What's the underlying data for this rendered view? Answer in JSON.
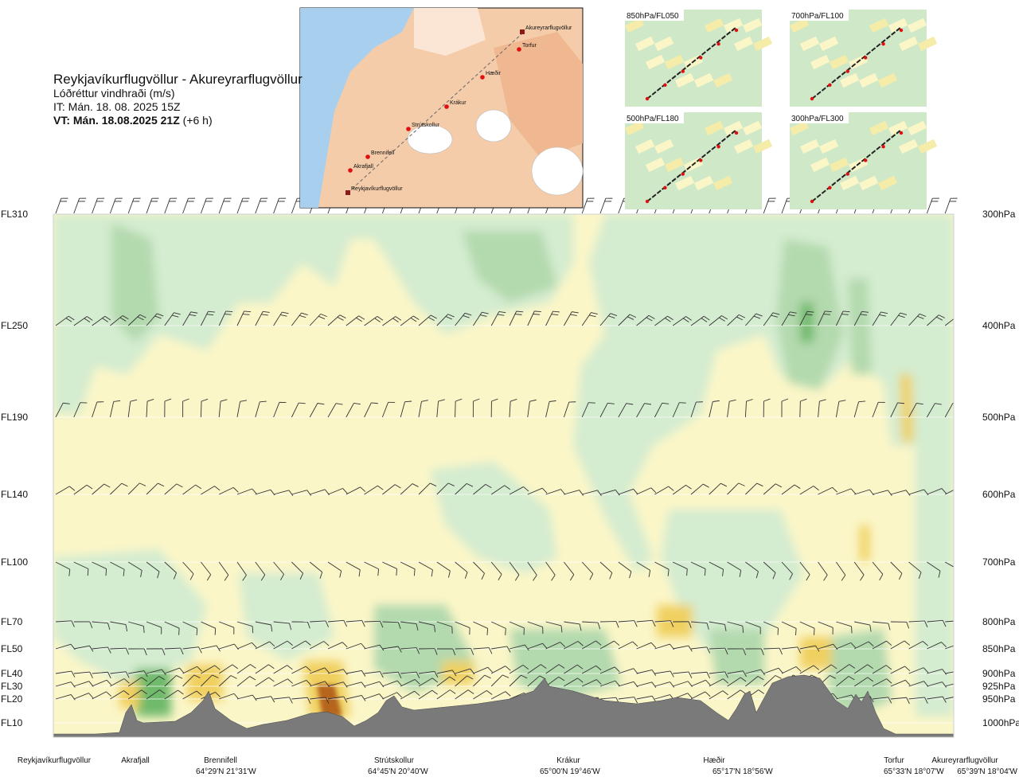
{
  "header": {
    "title": "Reykjavíkurflugvöllur - Akureyrarflugvöllur",
    "subtitle": "Lóðréttur vindhraði (m/s)",
    "issued": "IT: Mán. 18. 08. 2025 15Z",
    "valid_bold": "VT: Mán. 18.08.2025 21Z",
    "valid_extra": " (+6 h)"
  },
  "map": {
    "points": [
      "Akureyrarflugvöllur",
      "Torfur",
      "Hæðir",
      "Krákur",
      "Strútskollur",
      "Brennifell",
      "Akrafjall",
      "Reykjavíkurflugvöllur"
    ]
  },
  "mini_maps": [
    {
      "label": "850hPa/FL050"
    },
    {
      "label": "700hPa/FL100"
    },
    {
      "label": "500hPa/FL180"
    },
    {
      "label": "300hPa/FL300"
    }
  ],
  "chart_data": {
    "type": "heatmap",
    "title": "Lóðréttur vindhraði (m/s)",
    "left_axis": [
      "FL310",
      "FL250",
      "FL190",
      "FL140",
      "FL100",
      "FL70",
      "FL50",
      "FL40",
      "FL30",
      "FL20",
      "FL10"
    ],
    "right_axis": [
      "300hPa",
      "400hPa",
      "500hPa",
      "600hPa",
      "700hPa",
      "800hPa",
      "850hPa",
      "900hPa",
      "925hPa",
      "950hPa",
      "1000hPa"
    ],
    "stations": [
      {
        "name": "Reykjavíkurflugvöllur",
        "coord": ""
      },
      {
        "name": "Akrafjall",
        "coord": ""
      },
      {
        "name": "Brennifell",
        "coord": "64°29'N 21°31'W"
      },
      {
        "name": "Strútskollur",
        "coord": "64°45'N 20°40'W"
      },
      {
        "name": "Krákur",
        "coord": "65°00'N 19°46'W"
      },
      {
        "name": "Hæðir",
        "coord": "65°17'N 18°56'W"
      },
      {
        "name": "Torfur",
        "coord": "65°33'N 18°07'W"
      },
      {
        "name": "Akureyrarflugvöllur",
        "coord": "65°39'N 18°04'W"
      }
    ],
    "color_scale": {
      "strong_down": "#b5651d",
      "down": "#f0d060",
      "weak_down": "#f5ecaa",
      "neutral": "#fdfbe3",
      "weak_up": "#d4ecd0",
      "up": "#b3d9ae",
      "strong_up": "#6fba6c",
      "terrain": "#7a7a7a"
    },
    "grid": true
  }
}
